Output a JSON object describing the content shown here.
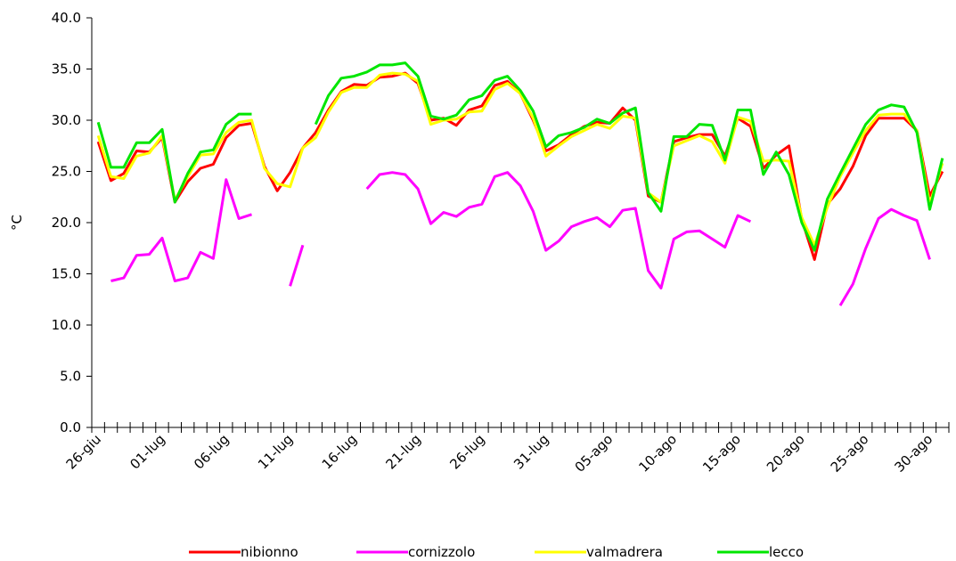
{
  "chart_data": {
    "type": "line",
    "categories": [
      "26-giu",
      null,
      null,
      null,
      null,
      "01-lug",
      null,
      null,
      null,
      null,
      "06-lug",
      null,
      null,
      null,
      null,
      "11-lug",
      null,
      null,
      null,
      null,
      "16-lug",
      null,
      null,
      null,
      null,
      "21-lug",
      null,
      null,
      null,
      null,
      "26-lug",
      null,
      null,
      null,
      null,
      "31-lug",
      null,
      null,
      null,
      null,
      "05-ago",
      null,
      null,
      null,
      null,
      "10-ago",
      null,
      null,
      null,
      null,
      "15-ago",
      null,
      null,
      null,
      null,
      "20-ago",
      null,
      null,
      null,
      null,
      "25-ago",
      null,
      null,
      null,
      null,
      "30-ago",
      null
    ],
    "y_label": "°C",
    "ylim": [
      0,
      40
    ],
    "yticks": [
      {
        "value": 0,
        "label": "0.0"
      },
      {
        "value": 5,
        "label": "5.0"
      },
      {
        "value": 10,
        "label": "10.0"
      },
      {
        "value": 15,
        "label": "15.0"
      },
      {
        "value": 20,
        "label": "20.0"
      },
      {
        "value": 25,
        "label": "25.0"
      },
      {
        "value": 30,
        "label": "30.0"
      },
      {
        "value": 35,
        "label": "35.0"
      },
      {
        "value": 40,
        "label": "40.0"
      }
    ],
    "legend": "bottom",
    "series": [
      {
        "name": "nibionno",
        "color": "#ff0000",
        "values": [
          27.9,
          24.1,
          24.8,
          27.0,
          26.9,
          28.3,
          22.0,
          24.0,
          25.3,
          25.7,
          28.3,
          29.5,
          29.7,
          25.5,
          23.1,
          24.9,
          27.3,
          28.8,
          31.0,
          32.8,
          33.5,
          33.4,
          34.2,
          34.3,
          34.6,
          33.6,
          30.0,
          30.2,
          29.5,
          31.0,
          31.4,
          33.4,
          33.8,
          32.6,
          30.0,
          27.0,
          27.6,
          28.6,
          29.4,
          29.8,
          29.7,
          31.2,
          30.0,
          22.6,
          22.0,
          27.9,
          28.3,
          28.6,
          28.6,
          26.5,
          30.2,
          29.4,
          25.3,
          26.6,
          27.5,
          20.3,
          16.4,
          21.8,
          23.3,
          25.5,
          28.5,
          30.2,
          30.2,
          30.2,
          29.0,
          22.6,
          25.0
        ]
      },
      {
        "name": "cornizzolo",
        "color": "#ff00ff",
        "values": [
          null,
          14.3,
          14.6,
          16.8,
          16.9,
          18.5,
          14.3,
          14.6,
          17.1,
          16.5,
          24.2,
          20.4,
          20.8,
          null,
          null,
          13.8,
          17.8,
          null,
          null,
          null,
          null,
          23.3,
          24.7,
          24.9,
          24.7,
          23.3,
          19.9,
          21.0,
          20.6,
          21.5,
          21.8,
          24.5,
          24.9,
          23.6,
          21.1,
          17.3,
          18.2,
          19.6,
          20.1,
          20.5,
          19.6,
          21.2,
          21.4,
          15.3,
          13.6,
          18.4,
          19.1,
          19.2,
          18.4,
          17.6,
          20.7,
          20.1,
          null,
          null,
          null,
          null,
          null,
          null,
          11.9,
          14.0,
          17.5,
          20.4,
          21.3,
          20.7,
          20.2,
          16.4,
          null
        ]
      },
      {
        "name": "valmadrera",
        "color": "#ffff00",
        "values": [
          28.5,
          24.5,
          24.3,
          26.5,
          26.8,
          28.5,
          22.2,
          24.5,
          26.6,
          26.7,
          28.8,
          29.8,
          30.0,
          25.3,
          23.8,
          23.5,
          27.3,
          28.3,
          30.8,
          32.7,
          33.2,
          33.2,
          34.4,
          34.6,
          34.5,
          33.8,
          29.6,
          30.0,
          30.1,
          30.8,
          30.9,
          33.0,
          33.6,
          32.6,
          30.2,
          26.5,
          27.5,
          28.4,
          29.0,
          29.6,
          29.2,
          30.4,
          30.2,
          22.9,
          22.0,
          27.5,
          28.0,
          28.5,
          27.9,
          25.8,
          30.3,
          29.9,
          26.0,
          26.1,
          26.0,
          20.5,
          17.8,
          21.5,
          24.5,
          26.8,
          29.0,
          30.5,
          30.6,
          30.6,
          29.0,
          21.8,
          25.8
        ]
      },
      {
        "name": "lecco",
        "color": "#00e600",
        "values": [
          29.8,
          25.4,
          25.4,
          27.8,
          27.8,
          29.1,
          22.0,
          24.8,
          26.9,
          27.1,
          29.6,
          30.6,
          30.6,
          null,
          null,
          null,
          null,
          29.6,
          32.4,
          34.1,
          34.3,
          34.7,
          35.4,
          35.4,
          35.6,
          34.3,
          30.4,
          30.1,
          30.5,
          32.0,
          32.4,
          33.9,
          34.3,
          32.9,
          30.9,
          27.4,
          28.5,
          28.8,
          29.3,
          30.1,
          29.7,
          30.7,
          31.2,
          22.9,
          21.1,
          28.4,
          28.4,
          29.6,
          29.5,
          26.1,
          31.0,
          31.0,
          24.7,
          26.9,
          24.7,
          20.0,
          17.3,
          22.3,
          24.8,
          27.2,
          29.6,
          31.0,
          31.5,
          31.3,
          28.8,
          21.3,
          26.3
        ]
      }
    ]
  }
}
